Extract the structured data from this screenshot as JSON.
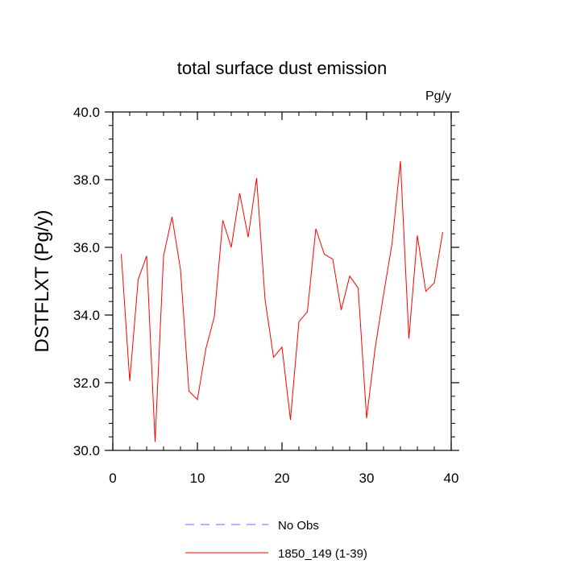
{
  "chart_data": {
    "type": "line",
    "title": "total surface dust emission",
    "units": "Pg/y",
    "xlabel": "",
    "ylabel": "DSTFLXT  (Pg/y)",
    "xlim": [
      0,
      40
    ],
    "ylim": [
      30,
      40
    ],
    "x_ticks": [
      0,
      10,
      20,
      30,
      40
    ],
    "x_tick_labels": [
      "0",
      "10",
      "20",
      "30",
      "40"
    ],
    "y_ticks": [
      30,
      32,
      34,
      36,
      38,
      40
    ],
    "y_tick_labels": [
      "30.0",
      "32.0",
      "34.0",
      "36.0",
      "38.0",
      "40.0"
    ],
    "grid": false,
    "legend_position": "bottom-center",
    "series": [
      {
        "name": "No Obs",
        "color": "#6666ff",
        "dash": "dashed",
        "x": [],
        "y": []
      },
      {
        "name": "1850_149 (1-39)",
        "color": "#ff0000",
        "dash": "solid",
        "x": [
          1,
          2,
          3,
          4,
          5,
          6,
          7,
          8,
          9,
          10,
          11,
          12,
          13,
          14,
          15,
          16,
          17,
          18,
          19,
          20,
          21,
          22,
          23,
          24,
          25,
          26,
          27,
          28,
          29,
          30,
          31,
          32,
          33,
          34,
          35,
          36,
          37,
          38,
          39
        ],
        "y": [
          35.8,
          32.05,
          35.05,
          35.75,
          30.25,
          35.75,
          36.9,
          35.35,
          31.75,
          31.5,
          33.0,
          33.95,
          36.8,
          36.0,
          37.6,
          36.3,
          38.05,
          34.45,
          32.75,
          33.05,
          30.9,
          33.8,
          34.1,
          36.55,
          35.8,
          35.65,
          34.15,
          35.15,
          34.8,
          30.95,
          33.0,
          34.6,
          36.1,
          38.55,
          33.3,
          36.35,
          34.7,
          34.95,
          36.45
        ]
      }
    ]
  }
}
